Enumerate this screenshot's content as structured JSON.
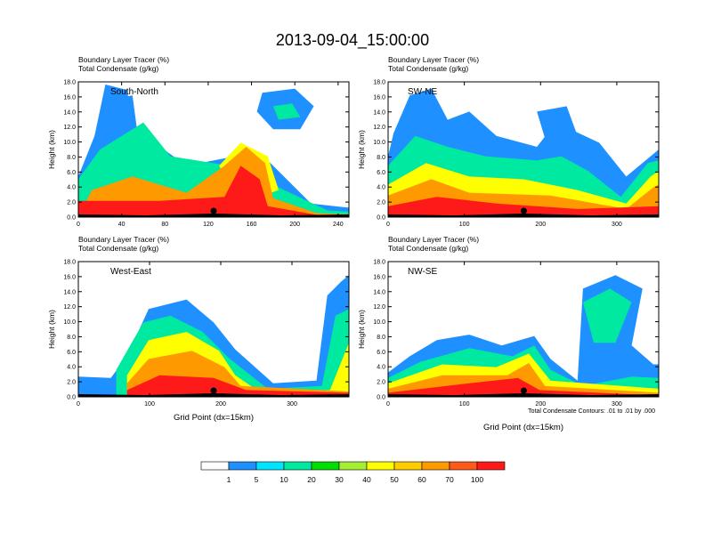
{
  "title": "2013-09-04_15:00:00",
  "colorbar": {
    "colors": [
      "#ffffff",
      "#1e90ff",
      "#00e5ff",
      "#00e9a0",
      "#00dd00",
      "#a6ee33",
      "#ffff00",
      "#ffcc00",
      "#ff9900",
      "#ff5a1a",
      "#ff1a1a"
    ],
    "labels": [
      "1",
      "5",
      "10",
      "20",
      "30",
      "40",
      "50",
      "60",
      "70",
      "100"
    ]
  },
  "footnote": "Total Condensate Contours: .01 to .01 by .000",
  "chart_data": [
    {
      "type": "heatmap",
      "label": "South-North",
      "title_line1": "Boundary Layer Tracer   (%)",
      "title_line2": "Total Condensate   (g/kg)",
      "ylabel": "Height (km)",
      "xlabel": "",
      "xlim": [
        0,
        250
      ],
      "ylim": [
        0,
        18
      ],
      "xticks": [
        "0",
        "40",
        "80",
        "120",
        "160",
        "200",
        "240"
      ],
      "yticks": [
        "0.0",
        "2.0",
        "4.0",
        "6.0",
        "8.0",
        "10.0",
        "12.0",
        "14.0",
        "16.0",
        "18.0"
      ],
      "marker_x": 125
    },
    {
      "type": "heatmap",
      "label": "SW-NE",
      "title_line1": "Boundary Layer Tracer   (%)",
      "title_line2": "Total Condensate   (g/kg)",
      "ylabel": "Height (km)",
      "xlabel": "",
      "xlim": [
        0,
        355
      ],
      "ylim": [
        0,
        18
      ],
      "xticks": [
        "0",
        "100",
        "200",
        "300"
      ],
      "yticks": [
        "0.0",
        "2.0",
        "4.0",
        "6.0",
        "8.0",
        "10.0",
        "12.0",
        "14.0",
        "16.0",
        "18.0"
      ],
      "marker_x": 178
    },
    {
      "type": "heatmap",
      "label": "West-East",
      "title_line1": "Boundary Layer Tracer   (%)",
      "title_line2": "Total Condensate   (g/kg)",
      "ylabel": "Height (km)",
      "xlabel": "Grid Point (dx=15km)",
      "xlim": [
        0,
        380
      ],
      "ylim": [
        0,
        18
      ],
      "xticks": [
        "0",
        "100",
        "200",
        "300"
      ],
      "yticks": [
        "0.0",
        "2.0",
        "4.0",
        "6.0",
        "8.0",
        "10.0",
        "12.0",
        "14.0",
        "16.0",
        "18.0"
      ],
      "marker_x": 190
    },
    {
      "type": "heatmap",
      "label": "NW-SE",
      "title_line1": "Boundary Layer Tracer   (%)",
      "title_line2": "Total Condensate   (g/kg)",
      "ylabel": "Height (km)",
      "xlabel": "Grid Point (dx=15km)",
      "xlim": [
        0,
        355
      ],
      "ylim": [
        0,
        18
      ],
      "xticks": [
        "0",
        "100",
        "200",
        "300"
      ],
      "yticks": [
        "0.0",
        "2.0",
        "4.0",
        "6.0",
        "8.0",
        "10.0",
        "12.0",
        "14.0",
        "16.0",
        "18.0"
      ],
      "marker_x": 178
    }
  ]
}
